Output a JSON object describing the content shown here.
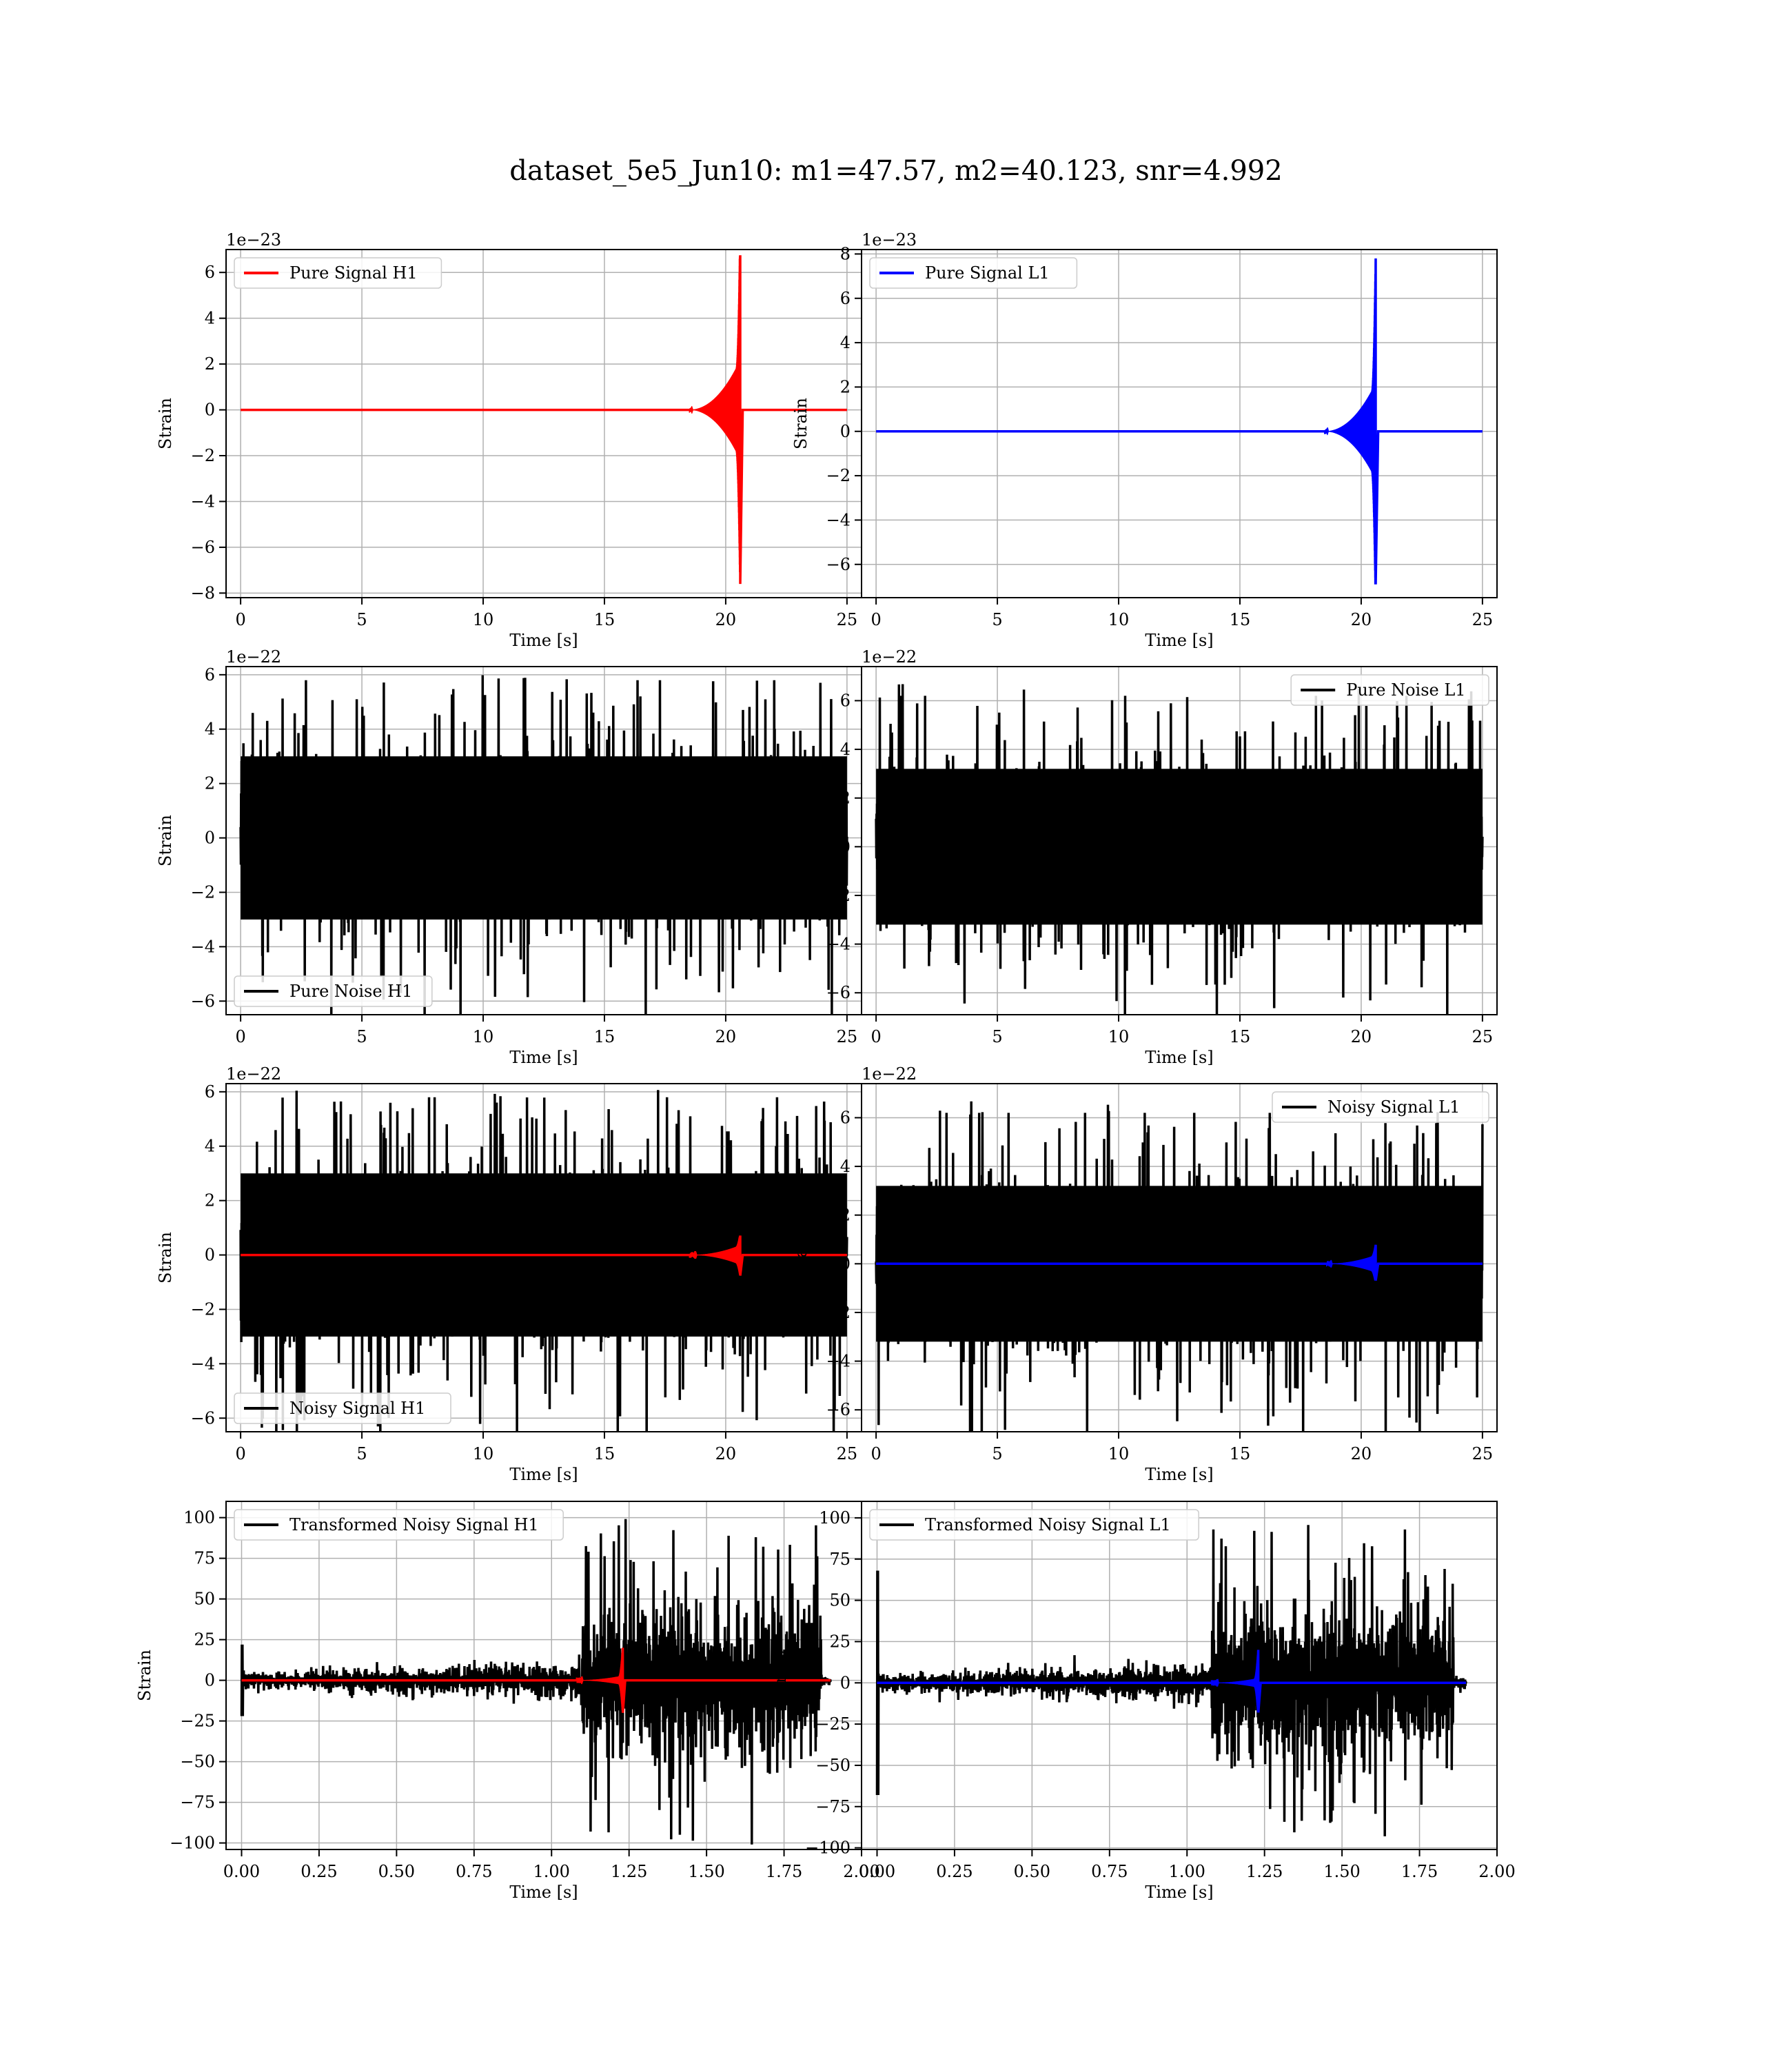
{
  "figure_title": "dataset_5e5_Jun10: m1=47.57, m2=40.123, snr=4.992",
  "chart_data": [
    {
      "type": "line",
      "title": "",
      "xlabel": "Time [s]",
      "ylabel": "Strain",
      "offset_text": "1e−23",
      "xlim": [
        -0.6,
        25.6
      ],
      "ylim": [
        -8.2,
        7.0
      ],
      "xticks": [
        0,
        5,
        10,
        15,
        20,
        25
      ],
      "yticks": [
        -8,
        -6,
        -4,
        -2,
        0,
        2,
        4,
        6
      ],
      "grid": true,
      "legend_position": "upper-left",
      "series": [
        {
          "name": "Pure Signal H1",
          "role": "signal",
          "color": "#ff0000",
          "x_range": [
            0,
            25
          ],
          "t_merge": 20.6,
          "amplitude_positive": 6.7,
          "amplitude_negative": -7.6,
          "inspiral_amplitude": 1.5
        }
      ]
    },
    {
      "type": "line",
      "title": "",
      "xlabel": "Time [s]",
      "ylabel": "Strain",
      "offset_text": "1e−23",
      "xlim": [
        -0.6,
        25.6
      ],
      "ylim": [
        -7.5,
        8.2
      ],
      "xticks": [
        0,
        5,
        10,
        15,
        20,
        25
      ],
      "yticks": [
        -6,
        -4,
        -2,
        0,
        2,
        4,
        6,
        8
      ],
      "grid": true,
      "legend_position": "upper-left",
      "series": [
        {
          "name": "Pure Signal L1",
          "role": "signal",
          "color": "#0000ff",
          "x_range": [
            0,
            25
          ],
          "t_merge": 20.6,
          "amplitude_positive": 7.8,
          "amplitude_negative": -6.9,
          "inspiral_amplitude": 1.5
        }
      ]
    },
    {
      "type": "line",
      "title": "",
      "xlabel": "Time [s]",
      "ylabel": "Strain",
      "offset_text": "1e−22",
      "xlim": [
        -0.6,
        25.6
      ],
      "ylim": [
        -6.5,
        6.3
      ],
      "xticks": [
        0,
        5,
        10,
        15,
        20,
        25
      ],
      "yticks": [
        -6,
        -4,
        -2,
        0,
        2,
        4,
        6
      ],
      "grid": true,
      "legend_position": "lower-left",
      "series": [
        {
          "name": "Pure Noise H1",
          "role": "noise",
          "color": "#000000",
          "x_range": [
            0,
            25
          ],
          "band": 3.0,
          "spike_max": 5.8,
          "spike_min": -6.1
        }
      ]
    },
    {
      "type": "line",
      "title": "",
      "xlabel": "Time [s]",
      "ylabel": "Strain",
      "offset_text": "1e−22",
      "xlim": [
        -0.6,
        25.6
      ],
      "ylim": [
        -6.9,
        7.4
      ],
      "xticks": [
        0,
        5,
        10,
        15,
        20,
        25
      ],
      "yticks": [
        -6,
        -4,
        -2,
        0,
        2,
        4,
        6
      ],
      "grid": true,
      "legend_position": "upper-right",
      "series": [
        {
          "name": "Pure Noise L1",
          "role": "noise",
          "color": "#000000",
          "x_range": [
            0,
            25
          ],
          "band": 3.2,
          "spike_max": 6.7,
          "spike_min": -6.2
        }
      ]
    },
    {
      "type": "line",
      "title": "",
      "xlabel": "Time [s]",
      "ylabel": "Strain",
      "offset_text": "1e−22",
      "xlim": [
        -0.6,
        25.6
      ],
      "ylim": [
        -6.5,
        6.3
      ],
      "xticks": [
        0,
        5,
        10,
        15,
        20,
        25
      ],
      "yticks": [
        -6,
        -4,
        -2,
        0,
        2,
        4,
        6
      ],
      "grid": true,
      "legend_position": "lower-left",
      "series": [
        {
          "name": "Noisy Signal H1",
          "role": "noise",
          "color": "#000000",
          "x_range": [
            0,
            25
          ],
          "band": 3.0,
          "spike_max": 5.8,
          "spike_min": -6.1
        },
        {
          "name": "",
          "role": "signal",
          "color": "#ff0000",
          "x_range": [
            0,
            25
          ],
          "t_merge": 20.6,
          "amplitude_positive": 0.67,
          "amplitude_negative": -0.76,
          "inspiral_amplitude": 0.25
        }
      ]
    },
    {
      "type": "line",
      "title": "",
      "xlabel": "Time [s]",
      "ylabel": "Strain",
      "offset_text": "1e−22",
      "xlim": [
        -0.6,
        25.6
      ],
      "ylim": [
        -6.9,
        7.4
      ],
      "xticks": [
        0,
        5,
        10,
        15,
        20,
        25
      ],
      "yticks": [
        -6,
        -4,
        -2,
        0,
        2,
        4,
        6
      ],
      "grid": true,
      "legend_position": "upper-right",
      "series": [
        {
          "name": "Noisy Signal L1",
          "role": "noise",
          "color": "#000000",
          "x_range": [
            0,
            25
          ],
          "band": 3.2,
          "spike_max": 6.7,
          "spike_min": -6.2
        },
        {
          "name": "",
          "role": "signal",
          "color": "#0000ff",
          "x_range": [
            0,
            25
          ],
          "t_merge": 20.6,
          "amplitude_positive": 0.78,
          "amplitude_negative": -0.69,
          "inspiral_amplitude": 0.25
        }
      ]
    },
    {
      "type": "line",
      "title": "",
      "xlabel": "Time [s]",
      "ylabel": "Strain",
      "offset_text": "",
      "xlim": [
        -0.05,
        2.0
      ],
      "ylim": [
        -104,
        110
      ],
      "xticks": [
        0.0,
        0.25,
        0.5,
        0.75,
        1.0,
        1.25,
        1.5,
        1.75,
        2.0
      ],
      "xtick_labels": [
        "0.00",
        "0.25",
        "0.50",
        "0.75",
        "1.00",
        "1.25",
        "1.50",
        "1.75",
        "2.00"
      ],
      "yticks": [
        -100,
        -75,
        -50,
        -25,
        0,
        25,
        50,
        75,
        100
      ],
      "grid": true,
      "legend_position": "upper-left",
      "series": [
        {
          "name": "Transformed Noisy Signal H1",
          "role": "transformed",
          "color": "#000000",
          "x_range": [
            0,
            1.9
          ],
          "burst_start": 1.1,
          "burst_end": 1.87,
          "quiet_band": 10,
          "burst_band": 45,
          "spike_max": 103,
          "spike_min": -103,
          "start_spike": 22
        },
        {
          "name": "",
          "role": "signal",
          "color": "#ff0000",
          "x_range": [
            0,
            1.9
          ],
          "t_merge": 1.23,
          "amplitude_positive": 20,
          "amplitude_negative": -20,
          "inspiral_amplitude": 2
        }
      ]
    },
    {
      "type": "line",
      "title": "",
      "xlabel": "Time [s]",
      "ylabel": "Strain",
      "offset_text": "",
      "xlim": [
        -0.05,
        2.0
      ],
      "ylim": [
        -101,
        110
      ],
      "xticks": [
        0.0,
        0.25,
        0.5,
        0.75,
        1.0,
        1.25,
        1.5,
        1.75,
        2.0
      ],
      "xtick_labels": [
        "0.00",
        "0.25",
        "0.50",
        "0.75",
        "1.00",
        "1.25",
        "1.50",
        "1.75",
        "2.00"
      ],
      "yticks": [
        -100,
        -75,
        -50,
        -25,
        0,
        25,
        50,
        75,
        100
      ],
      "grid": true,
      "legend_position": "upper-left",
      "series": [
        {
          "name": "Transformed Noisy Signal L1",
          "role": "transformed",
          "color": "#000000",
          "x_range": [
            0,
            1.9
          ],
          "burst_start": 1.08,
          "burst_end": 1.86,
          "quiet_band": 10,
          "burst_band": 45,
          "spike_max": 100,
          "spike_min": -93,
          "start_spike": -68
        },
        {
          "name": "",
          "role": "signal",
          "color": "#0000ff",
          "x_range": [
            0,
            1.9
          ],
          "t_merge": 1.23,
          "amplitude_positive": 20,
          "amplitude_negative": -18,
          "inspiral_amplitude": 2
        }
      ]
    }
  ]
}
